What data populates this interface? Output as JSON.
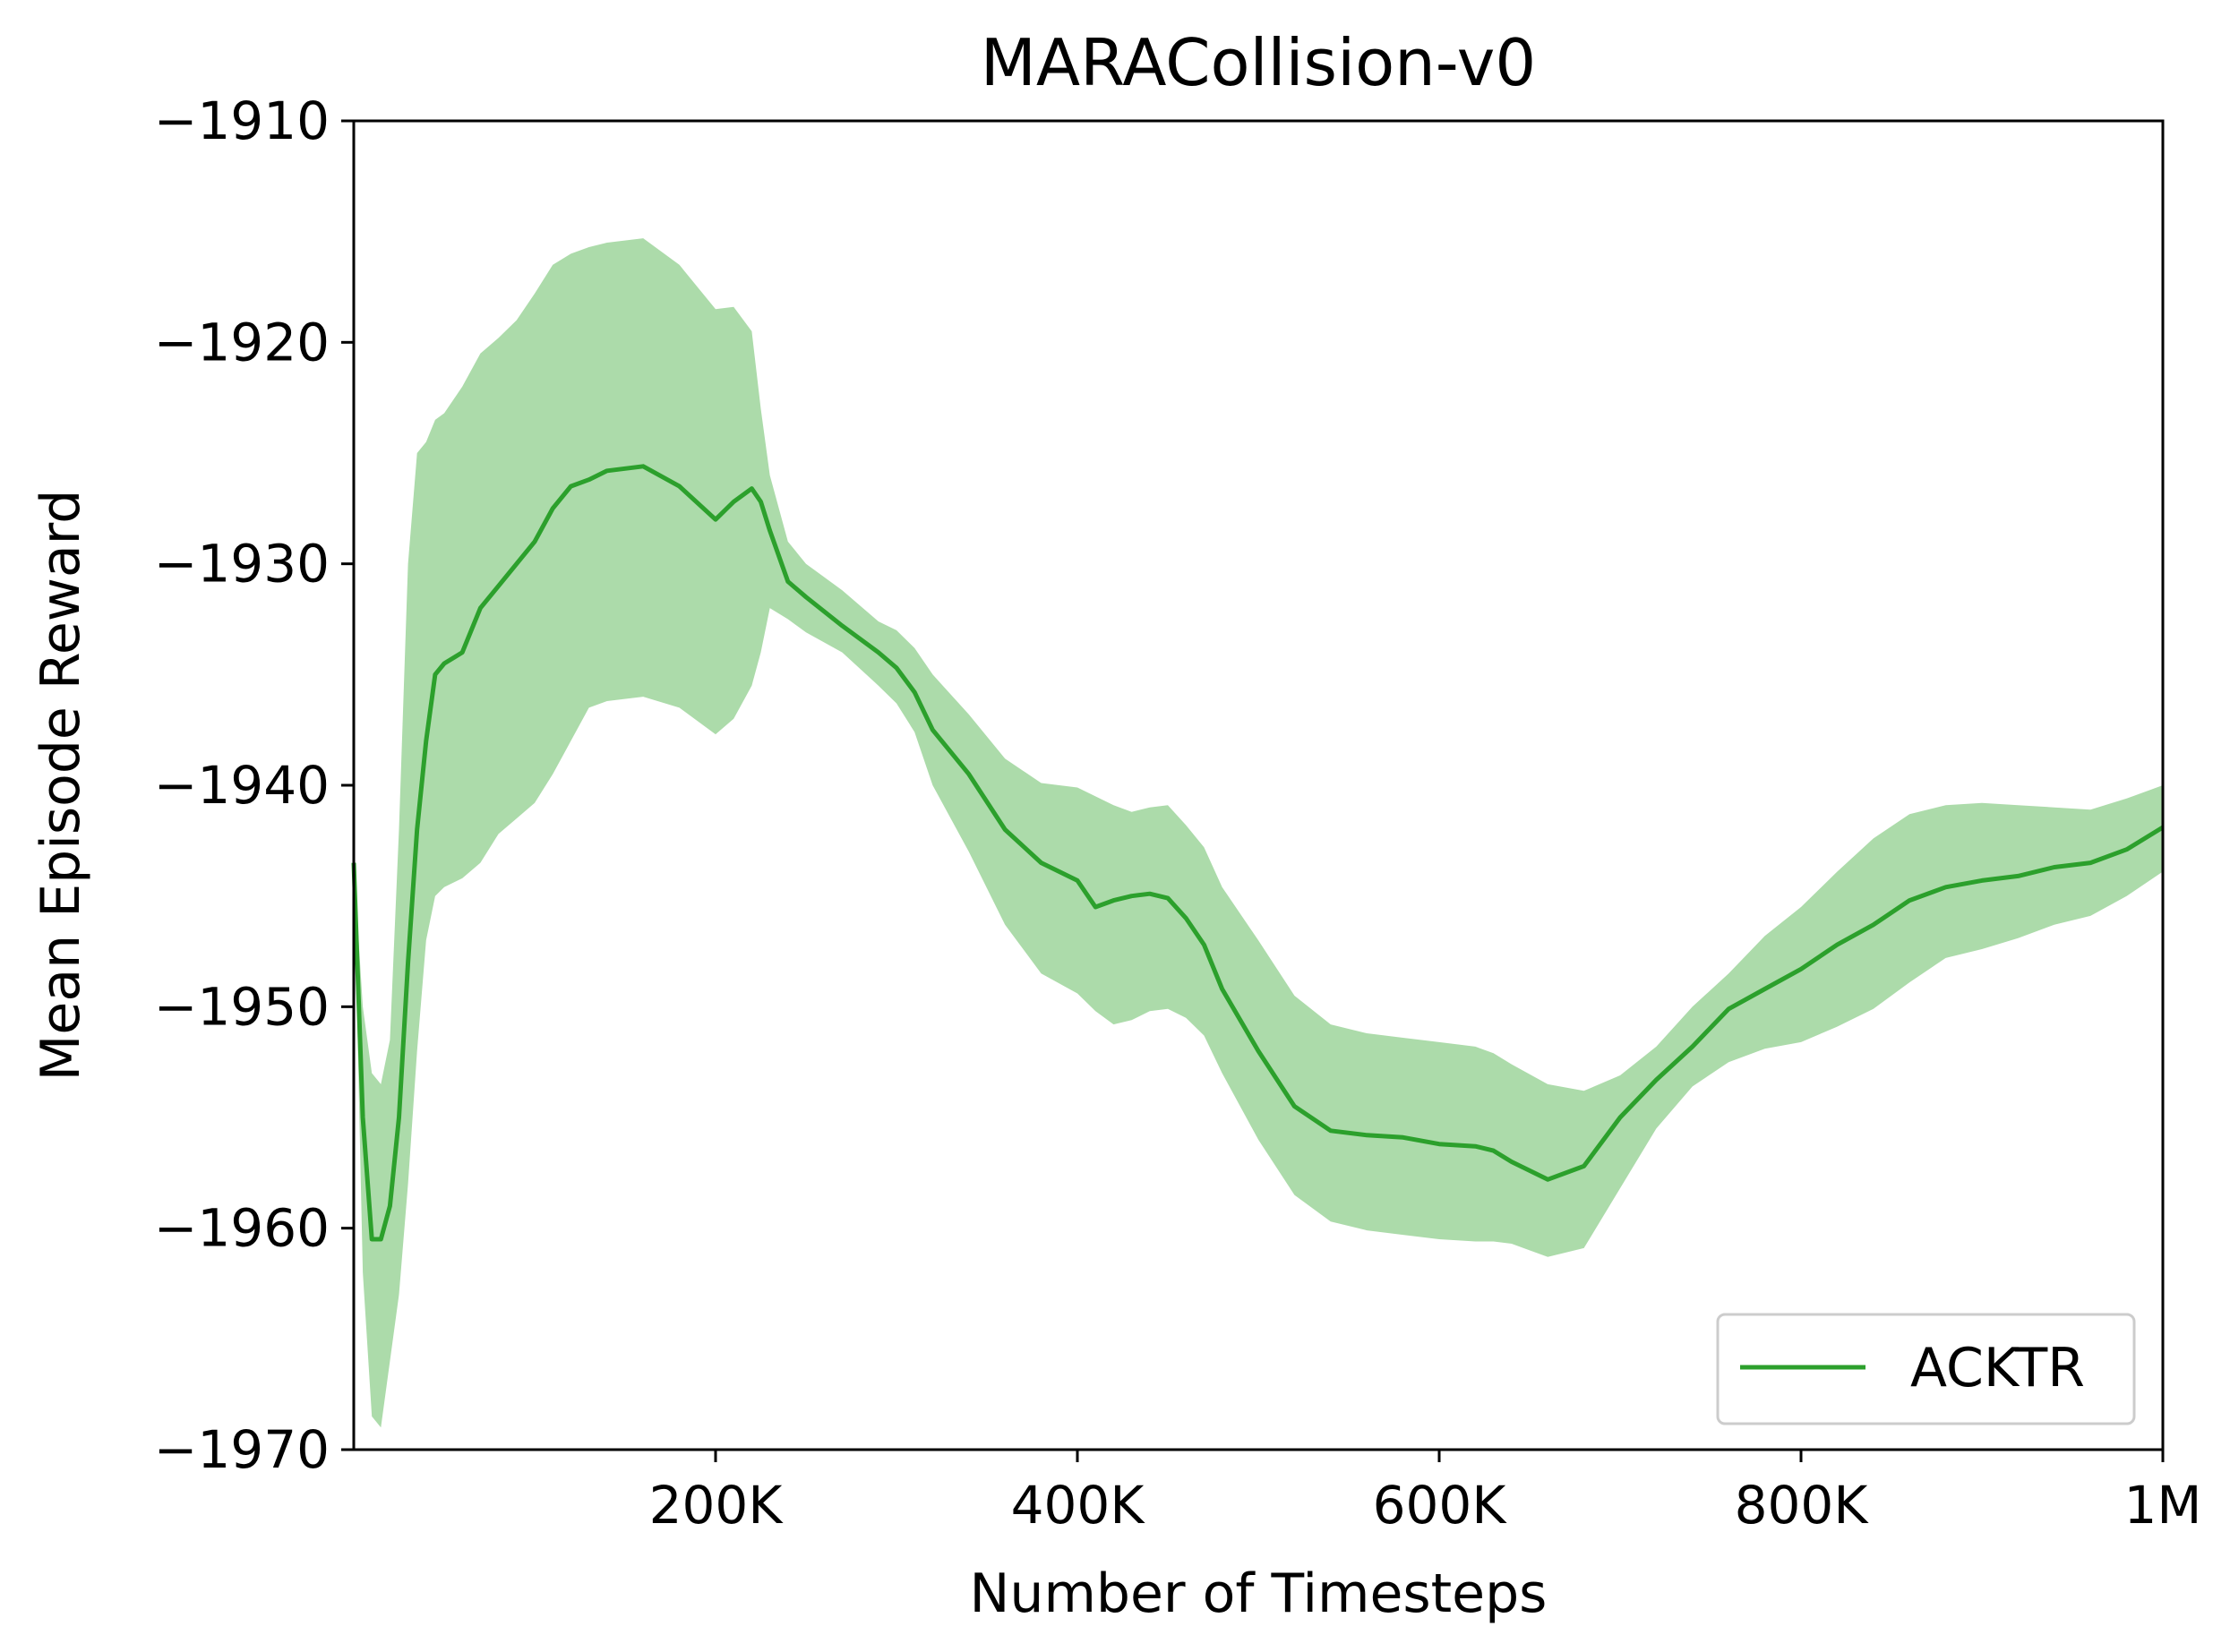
{
  "chart_data": {
    "type": "line",
    "title": "MARACollision-v0",
    "xlabel": "Number of Timesteps",
    "ylabel": "Mean Episode Reward",
    "xlim": [
      0,
      1000000
    ],
    "ylim": [
      -1970,
      -1910
    ],
    "xticks": [
      {
        "value": 200000,
        "label": "200K"
      },
      {
        "value": 400000,
        "label": "400K"
      },
      {
        "value": 600000,
        "label": "600K"
      },
      {
        "value": 800000,
        "label": "800K"
      },
      {
        "value": 1000000,
        "label": "1M"
      }
    ],
    "yticks": [
      {
        "value": -1910,
        "label": "−1910"
      },
      {
        "value": -1920,
        "label": "−1920"
      },
      {
        "value": -1930,
        "label": "−1930"
      },
      {
        "value": -1940,
        "label": "−1940"
      },
      {
        "value": -1950,
        "label": "−1950"
      },
      {
        "value": -1960,
        "label": "−1960"
      },
      {
        "value": -1970,
        "label": "−1970"
      }
    ],
    "grid": false,
    "legend_position": "bottom-right",
    "series": [
      {
        "name": "ACKTR",
        "color": "#2ca02c",
        "band_color": "#acdbaa",
        "x": [
          0,
          5000,
          10000,
          15000,
          20000,
          25000,
          30000,
          35000,
          40000,
          45000,
          50000,
          60000,
          70000,
          80000,
          90000,
          100000,
          110000,
          120000,
          130000,
          140000,
          160000,
          180000,
          200000,
          210000,
          220000,
          225000,
          230000,
          240000,
          250000,
          270000,
          290000,
          300000,
          310000,
          320000,
          340000,
          360000,
          380000,
          400000,
          410000,
          420000,
          430000,
          440000,
          450000,
          460000,
          470000,
          480000,
          500000,
          520000,
          540000,
          560000,
          580000,
          600000,
          620000,
          630000,
          640000,
          660000,
          680000,
          700000,
          720000,
          740000,
          760000,
          780000,
          800000,
          820000,
          840000,
          860000,
          880000,
          900000,
          920000,
          940000,
          960000,
          980000,
          1000000
        ],
        "mean": [
          -1943.5,
          -1955,
          -1960.5,
          -1960.5,
          -1959,
          -1955,
          -1948,
          -1942,
          -1938,
          -1935,
          -1934.5,
          -1934,
          -1932,
          -1931,
          -1930,
          -1929,
          -1927.5,
          -1926.5,
          -1926.2,
          -1925.8,
          -1925.6,
          -1926.5,
          -1928,
          -1927.2,
          -1926.6,
          -1927.2,
          -1928.5,
          -1930.8,
          -1931.5,
          -1932.8,
          -1934,
          -1934.7,
          -1935.8,
          -1937.5,
          -1939.5,
          -1942,
          -1943.5,
          -1944.3,
          -1945.5,
          -1945.2,
          -1945.0,
          -1944.9,
          -1945.1,
          -1946,
          -1947.2,
          -1949.2,
          -1952,
          -1954.5,
          -1955.6,
          -1955.8,
          -1955.9,
          -1956.2,
          -1956.3,
          -1956.5,
          -1957.0,
          -1957.8,
          -1957.2,
          -1955.0,
          -1953.3,
          -1951.8,
          -1950.1,
          -1949.2,
          -1948.3,
          -1947.2,
          -1946.3,
          -1945.2,
          -1944.6,
          -1944.3,
          -1944.1,
          -1943.7,
          -1943.5,
          -1942.9,
          -1941.9
        ],
        "upper": [
          -1943.5,
          -1950,
          -1953,
          -1953.5,
          -1951.5,
          -1942,
          -1930,
          -1925,
          -1924.5,
          -1923.5,
          -1923.2,
          -1922,
          -1920.5,
          -1919.8,
          -1919,
          -1917.8,
          -1916.5,
          -1916.0,
          -1915.7,
          -1915.5,
          -1915.3,
          -1916.5,
          -1918.5,
          -1918.4,
          -1919.5,
          -1923,
          -1926,
          -1929.0,
          -1930.0,
          -1931.2,
          -1932.6,
          -1933.0,
          -1933.8,
          -1935.0,
          -1936.8,
          -1938.8,
          -1939.9,
          -1940.1,
          -1940.5,
          -1940.9,
          -1941.2,
          -1941.0,
          -1940.9,
          -1941.8,
          -1942.8,
          -1944.6,
          -1947.0,
          -1949.5,
          -1950.8,
          -1951.2,
          -1951.4,
          -1951.6,
          -1951.8,
          -1952.1,
          -1952.6,
          -1953.5,
          -1953.8,
          -1953.1,
          -1951.8,
          -1950.0,
          -1948.5,
          -1946.8,
          -1945.5,
          -1943.9,
          -1942.4,
          -1941.3,
          -1940.9,
          -1940.8,
          -1940.9,
          -1941.0,
          -1941.1,
          -1940.6,
          -1940.0
        ],
        "lower": [
          -1943.5,
          -1962,
          -1968.5,
          -1969,
          -1966,
          -1963,
          -1958,
          -1952,
          -1947,
          -1945,
          -1944.6,
          -1944.2,
          -1943.5,
          -1942.2,
          -1941.5,
          -1940.8,
          -1939.5,
          -1938.0,
          -1936.5,
          -1936.2,
          -1936.0,
          -1936.5,
          -1937.7,
          -1937.0,
          -1935.5,
          -1934.0,
          -1932.0,
          -1932.5,
          -1933.1,
          -1934.0,
          -1935.5,
          -1936.3,
          -1937.6,
          -1940.0,
          -1943.0,
          -1946.3,
          -1948.5,
          -1949.4,
          -1950.2,
          -1950.8,
          -1950.6,
          -1950.2,
          -1950.1,
          -1950.5,
          -1951.3,
          -1953.0,
          -1956.0,
          -1958.5,
          -1959.7,
          -1960.1,
          -1960.3,
          -1960.5,
          -1960.6,
          -1960.6,
          -1960.7,
          -1961.3,
          -1960.9,
          -1958.2,
          -1955.5,
          -1953.6,
          -1952.5,
          -1951.9,
          -1951.6,
          -1950.9,
          -1950.1,
          -1948.9,
          -1947.8,
          -1947.4,
          -1946.9,
          -1946.3,
          -1945.9,
          -1945.0,
          -1943.9
        ]
      }
    ]
  }
}
